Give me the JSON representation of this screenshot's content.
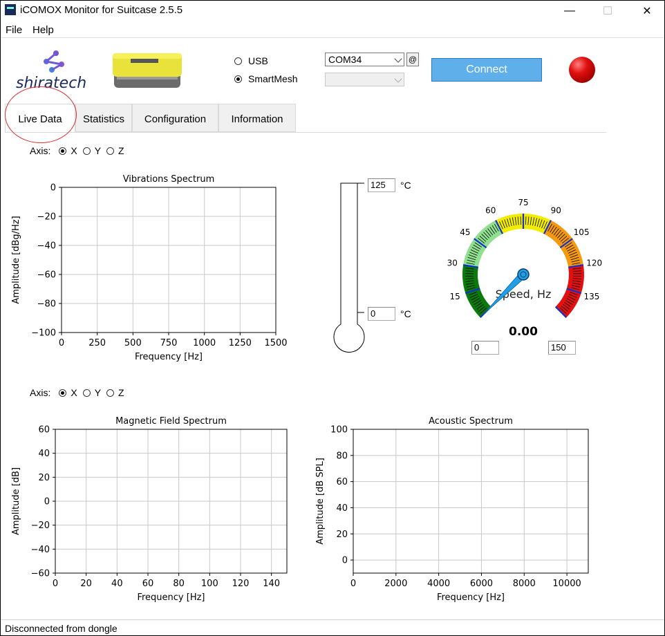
{
  "window": {
    "title": "iCOMOX Monitor for Suitcase 2.5.5",
    "minimize": "—",
    "maximize": "☐",
    "close": "✕"
  },
  "menu": {
    "file": "File",
    "help": "Help"
  },
  "brand": {
    "logo_text": "shiratech"
  },
  "connection": {
    "usb_label": "USB",
    "smartmesh_label": "SmartMesh",
    "selected": "SmartMesh",
    "com_port": "COM34",
    "mesh_value": "",
    "at_label": "@",
    "connect_label": "Connect",
    "status_led_color": "#d01010"
  },
  "tabs": [
    "Live Data",
    "Statistics",
    "Configuration",
    "Information"
  ],
  "active_tab": "Live Data",
  "axis_selector": {
    "label": "Axis:",
    "options": [
      "X",
      "Y",
      "Z"
    ],
    "selected": "X"
  },
  "thermometer": {
    "max_value": "125",
    "min_value": "0",
    "unit": "°C"
  },
  "speedometer": {
    "label": "Speed, Hz",
    "value": "0.00",
    "min_value": "0",
    "max_value": "150",
    "ticks": [
      "15",
      "30",
      "45",
      "60",
      "75",
      "90",
      "105",
      "120",
      "135"
    ],
    "needle": 0
  },
  "status": "Disconnected from dongle",
  "chart_data": [
    {
      "type": "line",
      "title": "Vibrations Spectrum",
      "xlabel": "Frequency [Hz]",
      "ylabel": "Amplitude [dBg/Hz]",
      "xlim": [
        0,
        1500
      ],
      "ylim": [
        -100,
        0
      ],
      "xticks": [
        "0",
        "250",
        "500",
        "750",
        "1000",
        "1250",
        "1500"
      ],
      "yticks": [
        "0",
        "−20",
        "−40",
        "−60",
        "−80",
        "−100"
      ],
      "grid": true,
      "series": []
    },
    {
      "type": "line",
      "title": "Magnetic Field Spectrum",
      "xlabel": "Frequency [Hz]",
      "ylabel": "Amplitude [dB]",
      "xlim": [
        0,
        150
      ],
      "ylim": [
        -60,
        60
      ],
      "xticks": [
        "0",
        "20",
        "40",
        "60",
        "80",
        "100",
        "120",
        "140"
      ],
      "yticks": [
        "60",
        "40",
        "20",
        "0",
        "−20",
        "−40",
        "−60"
      ],
      "grid": true,
      "series": []
    },
    {
      "type": "line",
      "title": "Acoustic Spectrum",
      "xlabel": "Frequency [Hz]",
      "ylabel": "Amplitude [dB SPL]",
      "xlim": [
        0,
        11000
      ],
      "ylim": [
        -10,
        100
      ],
      "xticks": [
        "0",
        "2000",
        "4000",
        "6000",
        "8000",
        "10000"
      ],
      "yticks": [
        "100",
        "80",
        "60",
        "40",
        "20",
        "0"
      ],
      "grid": true,
      "series": []
    }
  ]
}
